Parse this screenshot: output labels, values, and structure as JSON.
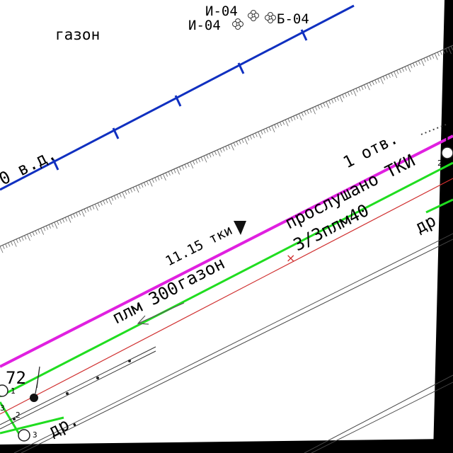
{
  "map": {
    "labels": {
      "lawn_top": "газон",
      "tree_line_1": "И-04",
      "tree_line_2": "И-04",
      "tree_code": "Б-04",
      "water_pipe": "0 в.д.",
      "openings": "1 отв.",
      "tki": "11.15 тки",
      "lawn_mid": "газон",
      "pipe_300": "плм 300",
      "listened": "прослушано ТКИ",
      "cable": "3/3плм40",
      "drain_right": "др.",
      "drain_left": "др.",
      "elev": "72",
      "node_1": "1",
      "node_2a": "2",
      "node_2b": "2",
      "node_3a": "3",
      "node_3b": "3",
      "edge_num": "1"
    },
    "colors": {
      "water": "#1030c0",
      "magenta": "#e020e0",
      "green": "#20dd20",
      "red": "#d03030",
      "dark": "#222222"
    },
    "icons": [
      "flower-icon",
      "triangle-marker-icon",
      "arrow-icon",
      "well-circle-icon"
    ]
  }
}
